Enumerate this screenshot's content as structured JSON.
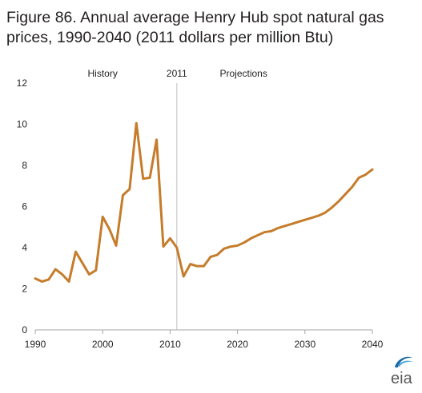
{
  "figure_title": "Figure 86. Annual average Henry Hub spot natural gas prices, 1990-2040 (2011 dollars per million Btu)",
  "logo_text": "eia",
  "chart_data": {
    "type": "line",
    "title": "Figure 86. Annual average Henry Hub spot natural gas prices, 1990-2040 (2011 dollars per million Btu)",
    "xlabel": "",
    "ylabel": "",
    "xlim": [
      1990,
      2040
    ],
    "ylim": [
      0,
      12
    ],
    "x_ticks": [
      1990,
      2000,
      2010,
      2020,
      2030,
      2040
    ],
    "y_ticks": [
      0,
      2,
      4,
      6,
      8,
      10,
      12
    ],
    "grid": false,
    "line_color": "#c57c2b",
    "divider_year": 2011,
    "annotations": [
      {
        "text": "History",
        "x": 2000
      },
      {
        "text": "2011",
        "x": 2011
      },
      {
        "text": "Projections",
        "x": 2020.9
      }
    ],
    "x": [
      1990,
      1991,
      1992,
      1993,
      1994,
      1995,
      1996,
      1997,
      1998,
      1999,
      2000,
      2001,
      2002,
      2003,
      2004,
      2005,
      2006,
      2007,
      2008,
      2009,
      2010,
      2011,
      2012,
      2013,
      2014,
      2015,
      2016,
      2017,
      2018,
      2019,
      2020,
      2021,
      2022,
      2023,
      2024,
      2025,
      2026,
      2027,
      2028,
      2029,
      2030,
      2031,
      2032,
      2033,
      2034,
      2035,
      2036,
      2037,
      2038,
      2039,
      2040
    ],
    "series": [
      {
        "values": [
          2.5,
          2.35,
          2.45,
          2.95,
          2.7,
          2.35,
          3.8,
          3.25,
          2.7,
          2.9,
          5.5,
          4.9,
          4.1,
          6.55,
          6.85,
          10.05,
          7.35,
          7.4,
          9.25,
          4.05,
          4.45,
          4.0,
          2.6,
          3.2,
          3.1,
          3.1,
          3.55,
          3.65,
          3.95,
          4.05,
          4.1,
          4.25,
          4.45,
          4.6,
          4.75,
          4.8,
          4.95,
          5.05,
          5.15,
          5.25,
          5.35,
          5.45,
          5.55,
          5.7,
          5.95,
          6.25,
          6.6,
          6.95,
          7.4,
          7.55,
          7.8
        ]
      }
    ]
  }
}
